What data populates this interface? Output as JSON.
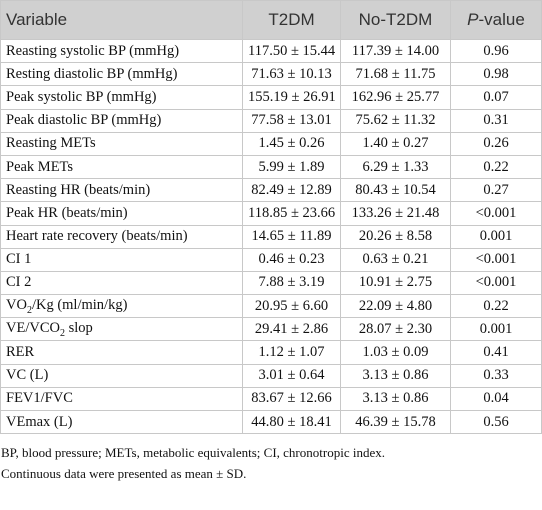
{
  "table": {
    "header": [
      "Variable",
      "T2DM",
      "No-T2DM",
      {
        "italic": "P",
        "rest": "-value"
      }
    ],
    "rows": [
      [
        "Reasting systolic BP (mmHg)",
        "117.50 ± 15.44",
        "117.39 ± 14.00",
        "0.96"
      ],
      [
        "Resting diastolic BP (mmHg)",
        "71.63 ± 10.13",
        "71.68 ± 11.75",
        "0.98"
      ],
      [
        "Peak systolic BP (mmHg)",
        "155.19 ± 26.91",
        "162.96 ± 25.77",
        "0.07"
      ],
      [
        "Peak diastolic BP (mmHg)",
        "77.58 ± 13.01",
        "75.62 ± 11.32",
        "0.31"
      ],
      [
        "Reasting METs",
        "1.45 ± 0.26",
        "1.40 ± 0.27",
        "0.26"
      ],
      [
        "Peak METs",
        "5.99 ± 1.89",
        "6.29 ± 1.33",
        "0.22"
      ],
      [
        "Reasting HR (beats/min)",
        "82.49 ± 12.89",
        "80.43 ± 10.54",
        "0.27"
      ],
      [
        "Peak HR (beats/min)",
        "118.85 ± 23.66",
        "133.26 ± 21.48",
        "<0.001"
      ],
      [
        "Heart rate recovery (beats/min)",
        "14.65 ± 11.89",
        "20.26 ± 8.58",
        "0.001"
      ],
      [
        "CI 1",
        "0.46 ± 0.23",
        "0.63 ± 0.21",
        "<0.001"
      ],
      [
        "CI 2",
        "7.88 ± 3.19",
        "10.91 ± 2.75",
        "<0.001"
      ],
      [
        {
          "parts": [
            "VO",
            "2",
            "/Kg (ml/min/kg)"
          ]
        },
        "20.95 ± 6.60",
        "22.09 ± 4.80",
        "0.22"
      ],
      [
        {
          "parts": [
            "VE/VCO",
            "2",
            " slop"
          ]
        },
        "29.41 ± 2.86",
        "28.07 ± 2.30",
        "0.001"
      ],
      [
        "RER",
        "1.12 ± 1.07",
        "1.03 ± 0.09",
        "0.41"
      ],
      [
        "VC (L)",
        "3.01 ± 0.64",
        "3.13 ± 0.86",
        "0.33"
      ],
      [
        "FEV1/FVC",
        "83.67 ± 12.66",
        "3.13 ± 0.86",
        "0.04"
      ],
      [
        "VEmax (L)",
        "44.80 ± 18.41",
        "46.39 ± 15.78",
        "0.56"
      ]
    ],
    "footnotes": [
      "BP, blood pressure; METs, metabolic equivalents; CI, chronotropic index.",
      "Continuous data were presented as mean ± SD."
    ]
  }
}
